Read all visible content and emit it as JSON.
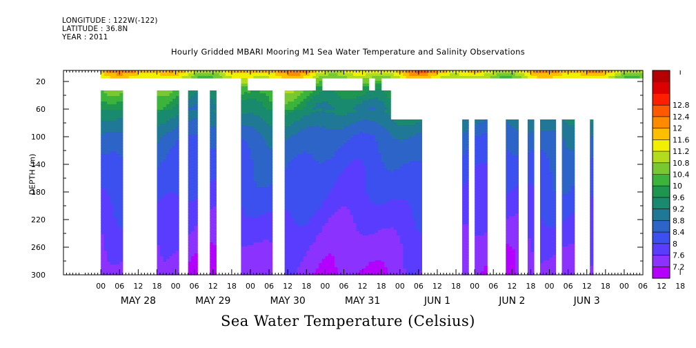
{
  "header": {
    "longitude": "LONGITUDE : 122W(-122)",
    "latitude": "LATITUDE : 36.8N",
    "year": "YEAR : 2011",
    "title": "Hourly Gridded MBARI Mooring M1 Sea Water Temperature and Salinity Observations"
  },
  "chart_data": {
    "type": "heatmap",
    "title": "Hourly Gridded MBARI Mooring M1 Sea Water Temperature and Salinity Observations",
    "xlabel": "Sea Water Temperature (Celsius)",
    "ylabel": "DEPTH (m)",
    "x_unit": "hours since May 28 2011 00:00",
    "xlim": [
      -12,
      174
    ],
    "ylim": [
      300,
      4
    ],
    "y_ticks": [
      20,
      60,
      100,
      140,
      180,
      220,
      260,
      300
    ],
    "x_hour_ticks": [
      "00",
      "06",
      "12",
      "18",
      "00",
      "06",
      "12",
      "18",
      "00",
      "06",
      "12",
      "18",
      "00",
      "06",
      "12",
      "18",
      "00",
      "06",
      "12",
      "18",
      "00",
      "06",
      "12",
      "18",
      "00",
      "06",
      "12",
      "18",
      "00",
      "06",
      "12",
      "18"
    ],
    "x_day_labels": [
      "MAY 28",
      "MAY 29",
      "MAY 30",
      "MAY 31",
      "JUN  1",
      "JUN  2",
      "JUN  3"
    ],
    "colorbar": {
      "levels": [
        7.2,
        7.6,
        8,
        8.4,
        8.8,
        9.2,
        9.6,
        10,
        10.4,
        10.8,
        11.2,
        11.6,
        12,
        12.4,
        12.8
      ],
      "colors": [
        "#b400ff",
        "#8c32ff",
        "#5a3cff",
        "#3c50f0",
        "#2d64c8",
        "#1e7896",
        "#1a8a6e",
        "#1e9650",
        "#3cb43c",
        "#78c832",
        "#b4dc1e",
        "#f0f000",
        "#ffbe00",
        "#ff8c00",
        "#ff5a00",
        "#ff1e00",
        "#dc0000",
        "#b40000"
      ]
    },
    "temperature_model": {
      "surface": 11.8,
      "depth_points": [
        [
          4,
          11.8
        ],
        [
          15,
          11.0
        ],
        [
          30,
          10.2
        ],
        [
          50,
          9.6
        ],
        [
          80,
          9.0
        ],
        [
          100,
          8.6
        ],
        [
          140,
          8.3
        ],
        [
          180,
          8.1
        ],
        [
          220,
          7.8
        ],
        [
          260,
          7.5
        ],
        [
          300,
          7.3
        ]
      ]
    },
    "data_columns": [
      {
        "t0": 0,
        "t1": 7,
        "dtop": 4,
        "gap": [
          15,
          33
        ]
      },
      {
        "t0": 7,
        "t1": 18,
        "dtop": 4,
        "dbot": 15
      },
      {
        "t0": 18,
        "t1": 25,
        "dtop": 4,
        "gap": [
          20,
          33
        ]
      },
      {
        "t0": 25,
        "t1": 28,
        "dtop": 4,
        "dbot": 15
      },
      {
        "t0": 28,
        "t1": 31,
        "dtop": 4,
        "gap": [
          15,
          33
        ],
        "dbot2": 300
      },
      {
        "t0": 31,
        "t1": 35,
        "dtop": 4,
        "dbot": 15
      },
      {
        "t0": 35,
        "t1": 37,
        "dtop": 4,
        "gap": [
          15,
          33
        ]
      },
      {
        "t0": 37,
        "t1": 45,
        "dtop": 4,
        "dbot": 15
      },
      {
        "t0": 45,
        "t1": 47,
        "dtop": 4,
        "dbot": 300
      },
      {
        "t0": 47,
        "t1": 55,
        "dtop": 4,
        "gap": [
          15,
          33
        ]
      },
      {
        "t0": 55,
        "t1": 59,
        "dtop": 4,
        "gap": [
          15,
          300
        ]
      },
      {
        "t0": 59,
        "t1": 69,
        "dtop": 4,
        "gap": [
          15,
          33
        ]
      },
      {
        "t0": 69,
        "t1": 71,
        "dtop": 4,
        "dbot": 300
      },
      {
        "t0": 71,
        "t1": 84,
        "dtop": 4,
        "gap": [
          15,
          33
        ]
      },
      {
        "t0": 84,
        "t1": 86,
        "dtop": 4,
        "dbot": 300
      },
      {
        "t0": 86,
        "t1": 88,
        "dtop": 4,
        "gap": [
          15,
          33
        ]
      },
      {
        "t0": 88,
        "t1": 90,
        "dtop": 4,
        "dbot": 300
      },
      {
        "t0": 90,
        "t1": 93,
        "dtop": 4,
        "gap": [
          15,
          33
        ]
      },
      {
        "t0": 93,
        "t1": 98,
        "dtop": 4,
        "gap": [
          15,
          75
        ]
      },
      {
        "t0": 98,
        "t1": 103,
        "dtop": 4,
        "gap": [
          15,
          75
        ]
      },
      {
        "t0": 116,
        "t1": 118,
        "dtop": 4,
        "gap": [
          15,
          75
        ]
      },
      {
        "t0": 120,
        "t1": 124,
        "dtop": 4,
        "gap": [
          15,
          75
        ]
      },
      {
        "t0": 130,
        "t1": 134,
        "dtop": 4,
        "gap": [
          15,
          75
        ]
      },
      {
        "t0": 137,
        "t1": 139,
        "dtop": 4,
        "gap": [
          15,
          75
        ]
      },
      {
        "t0": 141,
        "t1": 146,
        "dtop": 4,
        "gap": [
          15,
          75
        ]
      },
      {
        "t0": 148,
        "t1": 152,
        "dtop": 4,
        "gap": [
          15,
          75
        ]
      },
      {
        "t0": 157,
        "t1": 158,
        "dtop": 4,
        "gap": [
          15,
          75
        ]
      },
      {
        "t0": 160,
        "t1": 165,
        "dtop": 4,
        "dbot": 15
      }
    ]
  }
}
